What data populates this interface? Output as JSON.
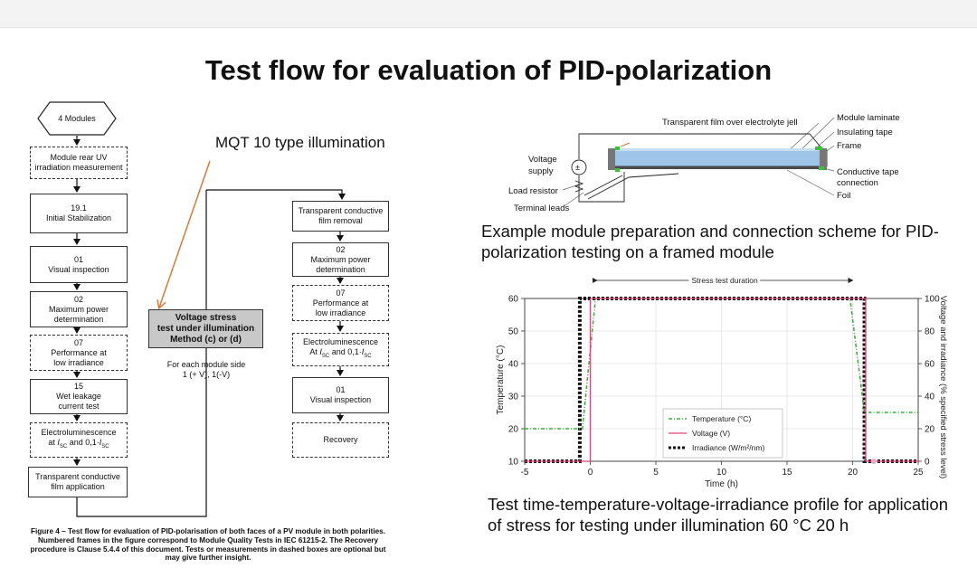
{
  "title": "Test flow for evaluation of PID-polarization",
  "flow": {
    "start": "4 Modules",
    "left_boxes": [
      {
        "lines": [
          "Module rear UV",
          "irradiation measurement"
        ]
      },
      {
        "lines": [
          "19.1",
          "Initial Stabilization"
        ]
      },
      {
        "lines": [
          "01",
          "Visual inspection"
        ]
      },
      {
        "lines": [
          "02",
          "Maximum power",
          "determination"
        ]
      },
      {
        "lines": [
          "07",
          "Performance at",
          "low irradiance"
        ]
      },
      {
        "lines": [
          "15",
          "Wet leakage",
          "current test"
        ]
      },
      {
        "lines": [
          "Electroluminescence",
          "at I_SC and 0,1·I_SC"
        ]
      },
      {
        "lines": [
          "Transparent conductive",
          "film application"
        ]
      }
    ],
    "stress_box": [
      "Voltage stress",
      "test under illumination",
      "Method (c) or (d)"
    ],
    "stress_note": [
      "For each module side",
      "1 (+ V), 1(-V)"
    ],
    "right_boxes": [
      {
        "lines": [
          "Transparent conductive",
          "film removal"
        ]
      },
      {
        "lines": [
          "02",
          "Maximum power",
          "determination"
        ]
      },
      {
        "lines": [
          "07",
          "Performance at",
          "low irradiance"
        ]
      },
      {
        "lines": [
          "Electroluminescence",
          "At I_SC and 0,1·I_SC"
        ]
      },
      {
        "lines": [
          "01",
          "Visual inspection"
        ]
      },
      {
        "lines": [
          "Recovery"
        ]
      }
    ],
    "mqt_label": "MQT 10 type illumination",
    "caption": "Figure 4 – Test flow for evaluation of PID-polarisation of both faces of a PV module in both polarities. Numbered frames in the figure correspond to Module Quality Tests in IEC 61215-2. The Recovery procedure is Clause 5.4.4 of this document. Tests or measurements in dashed boxes are optional but may give further insight."
  },
  "scheme": {
    "labels": {
      "film": "Transparent film over electrolyte jell",
      "laminate": "Module laminate",
      "insulating": "Insulating tape",
      "frame": "Frame",
      "voltage1": "Voltage",
      "voltage2": "supply",
      "conductive1": "Conductive tape",
      "conductive2": "connection",
      "load": "Load resistor",
      "foil": "Foil",
      "terminal": "Terminal leads"
    },
    "caption": "Example module preparation and connection scheme for PID-polarization testing on a framed module"
  },
  "chart_data": {
    "type": "line",
    "annotation": "Stress test duration",
    "xlabel": "Time (h)",
    "ylabel": "Temperature (°C)",
    "y2label": "Voltage and irradiance (% specified stress level)",
    "xlim": [
      -5,
      25
    ],
    "ylim": [
      10,
      60
    ],
    "y2lim": [
      0,
      100
    ],
    "xticks": [
      -5,
      0,
      5,
      10,
      15,
      20,
      25
    ],
    "yticks": [
      10,
      20,
      30,
      40,
      50,
      60
    ],
    "y2ticks": [
      0,
      20,
      40,
      60,
      80,
      100
    ],
    "grid": true,
    "legend": "center-bottom",
    "series": [
      {
        "name": "Temperature (°C)",
        "axis": "left",
        "color": "#3cb043",
        "style": "dash-dot",
        "x": [
          -5,
          -0.6,
          0.4,
          19.8,
          20.9,
          25
        ],
        "y": [
          20,
          20,
          60,
          60,
          25,
          25
        ]
      },
      {
        "name": "Voltage (V)",
        "axis": "right",
        "color": "#e0457b",
        "style": "solid",
        "x": [
          -5,
          0,
          0,
          21,
          21,
          25
        ],
        "y": [
          0,
          0,
          100,
          100,
          0,
          0
        ]
      },
      {
        "name": "Irradiance (W/m²/nm)",
        "axis": "right",
        "color": "#111111",
        "style": "dotted",
        "x": [
          -5,
          -0.8,
          -0.8,
          20.9,
          20.9,
          25
        ],
        "y": [
          0,
          0,
          100,
          100,
          0,
          0
        ]
      }
    ],
    "caption": "Test time-temperature-voltage-irradiance profile for application of stress for testing under illumination 60 °C 20 h"
  }
}
